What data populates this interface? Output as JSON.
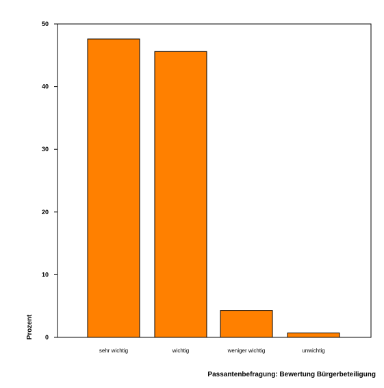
{
  "chart_data": {
    "type": "bar",
    "title": "",
    "xlabel": "Passantenbefragung: Bewertung Bürgerbeteiligung",
    "ylabel": "Prozent",
    "categories": [
      "sehr wichtig",
      "wichtig",
      "weniger wichtig",
      "unwichtig"
    ],
    "values": [
      47.6,
      45.6,
      4.3,
      0.7
    ],
    "ylim": [
      0,
      50
    ],
    "yticks": [
      "0",
      "10",
      "20",
      "30",
      "40",
      "50"
    ],
    "grid": false,
    "legend": "none",
    "bar_color": "#ff8000",
    "bar_stroke": "#000000"
  }
}
